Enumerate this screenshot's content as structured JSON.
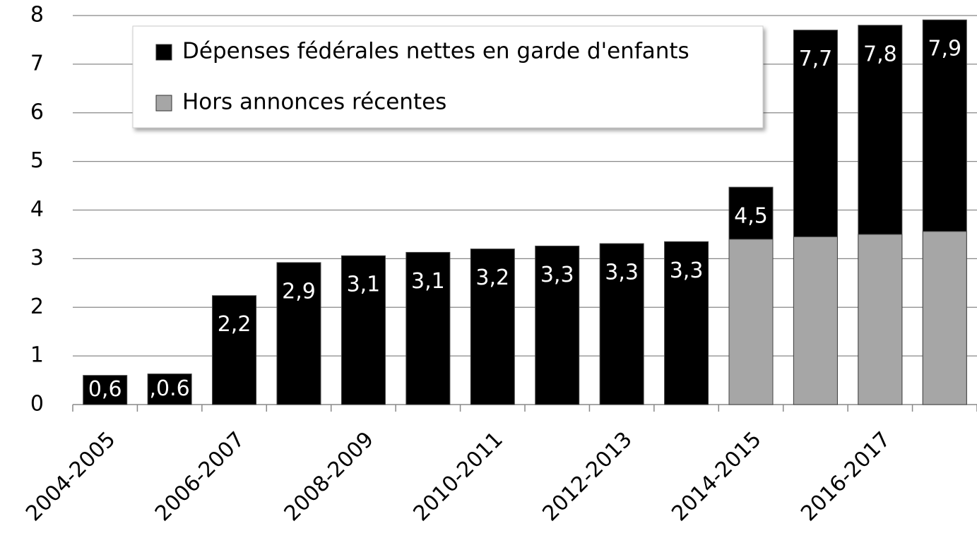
{
  "chart_data": {
    "type": "bar",
    "overlap": true,
    "categories": [
      "2004-2005",
      null,
      "2006-2007",
      null,
      "2008-2009",
      null,
      "2010-2011",
      null,
      "2012-2013",
      null,
      "2014-2015",
      null,
      "2016-2017",
      null
    ],
    "series": [
      {
        "name": "Dépenses fédérales nettes en garde d'enfants",
        "color": "#000000",
        "values": [
          0.6,
          0.63,
          2.24,
          2.92,
          3.06,
          3.13,
          3.2,
          3.26,
          3.31,
          3.35,
          4.47,
          7.7,
          7.8,
          7.91
        ],
        "value_labels": [
          "0,6",
          ",0.6",
          "2,2",
          "2,9",
          "3,1",
          "3,1",
          "3,2",
          "3,3",
          "3,3",
          "3,3",
          "4,5",
          "7,7",
          "7,8",
          "7,9"
        ]
      },
      {
        "name": "Hors annonces récentes",
        "color": "#a6a6a6",
        "values": [
          null,
          null,
          null,
          null,
          null,
          null,
          null,
          null,
          null,
          null,
          3.4,
          3.45,
          3.5,
          3.56
        ]
      }
    ],
    "ylim": [
      0,
      8
    ],
    "yticks": [
      0,
      1,
      2,
      3,
      4,
      5,
      6,
      7,
      8
    ],
    "grid": true,
    "legend": "top"
  }
}
